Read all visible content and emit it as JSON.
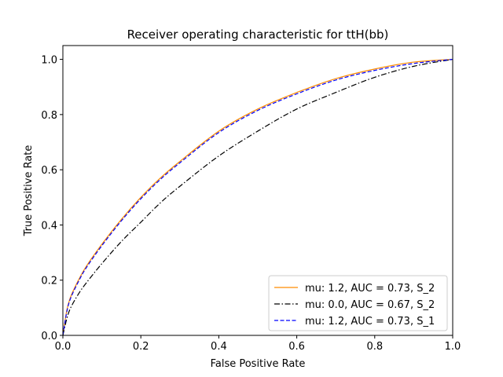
{
  "chart_data": {
    "type": "line",
    "title": "Receiver operating characteristic for ttH(bb)",
    "xlabel": "False Positive Rate",
    "ylabel": "True Positive Rate",
    "xlim": [
      0,
      1
    ],
    "ylim": [
      0,
      1.05
    ],
    "xticks": [
      "0.0",
      "0.2",
      "0.4",
      "0.6",
      "0.8",
      "1.0"
    ],
    "yticks": [
      "0.0",
      "0.2",
      "0.4",
      "0.6",
      "0.8",
      "1.0"
    ],
    "grid": false,
    "legend_position": "lower-right",
    "series": [
      {
        "name": "mu: 1.2, AUC = 0.73, S_2",
        "color": "#ff8c00",
        "dash": "solid",
        "x": [
          0,
          0.01,
          0.02,
          0.04,
          0.06,
          0.1,
          0.15,
          0.2,
          0.25,
          0.3,
          0.4,
          0.5,
          0.6,
          0.7,
          0.8,
          0.9,
          1.0
        ],
        "y": [
          0,
          0.09,
          0.14,
          0.2,
          0.25,
          0.33,
          0.42,
          0.5,
          0.57,
          0.63,
          0.74,
          0.82,
          0.88,
          0.93,
          0.965,
          0.99,
          1.0
        ]
      },
      {
        "name": "mu: 0.0, AUC = 0.67, S_2",
        "color": "#000000",
        "dash": "dashdot",
        "x": [
          0,
          0.01,
          0.02,
          0.04,
          0.06,
          0.1,
          0.15,
          0.2,
          0.25,
          0.3,
          0.4,
          0.5,
          0.6,
          0.7,
          0.8,
          0.9,
          1.0
        ],
        "y": [
          0,
          0.06,
          0.1,
          0.15,
          0.19,
          0.26,
          0.34,
          0.41,
          0.48,
          0.54,
          0.65,
          0.74,
          0.82,
          0.88,
          0.935,
          0.975,
          1.0
        ]
      },
      {
        "name": "mu: 1.2, AUC = 0.73, S_1",
        "color": "#0000ff",
        "dash": "dashed",
        "x": [
          0,
          0.01,
          0.02,
          0.04,
          0.06,
          0.1,
          0.15,
          0.2,
          0.25,
          0.3,
          0.4,
          0.5,
          0.6,
          0.7,
          0.8,
          0.9,
          1.0
        ],
        "y": [
          0,
          0.085,
          0.135,
          0.195,
          0.245,
          0.325,
          0.415,
          0.495,
          0.565,
          0.625,
          0.735,
          0.815,
          0.875,
          0.925,
          0.96,
          0.985,
          1.0
        ]
      }
    ]
  }
}
